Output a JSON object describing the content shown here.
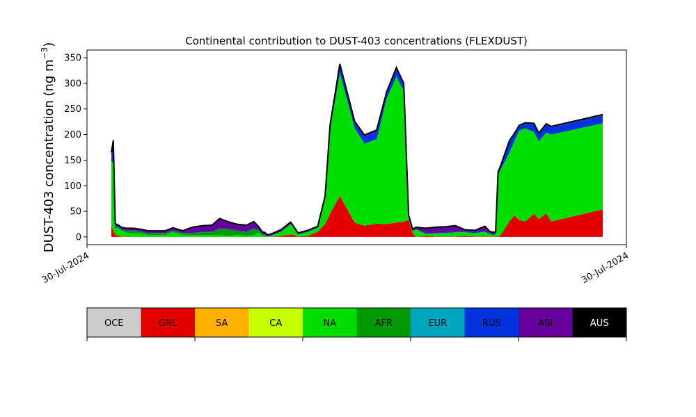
{
  "chart_data": {
    "type": "area",
    "title": "Continental contribution to DUST-403 concentrations (FLEXDUST)",
    "ylabel": "DUST-403 concentration (ng m",
    "ylabel_sup": "−3",
    "ylabel_close": ")",
    "xlabel": "",
    "x_tick_labels": [
      "30-Jul-2024",
      "30-Jul-2024"
    ],
    "ylim": [
      -15,
      365
    ],
    "yticks": [
      0,
      50,
      100,
      150,
      200,
      250,
      300,
      350
    ],
    "x": [
      0.0,
      0.004,
      0.008,
      0.011,
      0.015,
      0.02,
      0.03,
      0.045,
      0.06,
      0.075,
      0.09,
      0.11,
      0.125,
      0.145,
      0.165,
      0.185,
      0.205,
      0.22,
      0.24,
      0.255,
      0.275,
      0.29,
      0.3,
      0.307,
      0.312,
      0.318,
      0.325,
      0.345,
      0.365,
      0.38,
      0.4,
      0.42,
      0.435,
      0.445,
      0.465,
      0.495,
      0.515,
      0.54,
      0.56,
      0.58,
      0.595,
      0.605,
      0.613,
      0.62,
      0.64,
      0.66,
      0.68,
      0.7,
      0.72,
      0.74,
      0.76,
      0.77,
      0.777,
      0.782,
      0.787,
      0.792,
      0.81,
      0.82,
      0.83,
      0.842,
      0.86,
      0.87,
      0.885,
      0.895,
      1.0
    ],
    "series": [
      {
        "name": "OCE",
        "color": "#cccccc",
        "values": [
          0,
          0,
          0,
          0,
          0,
          0,
          0,
          0,
          0,
          0,
          0,
          0,
          0,
          0,
          0,
          0,
          0,
          0,
          0,
          0,
          0,
          0,
          0,
          0,
          0,
          0,
          0,
          0,
          0,
          0,
          0,
          0,
          0,
          0,
          0,
          0,
          0,
          0,
          0,
          0,
          0,
          0,
          0,
          0,
          0,
          0,
          0,
          0,
          0,
          0,
          0,
          0,
          0,
          0,
          0,
          0,
          0,
          0,
          0,
          0,
          0,
          0,
          0,
          0,
          0
        ]
      },
      {
        "name": "GNL",
        "color": "#e50000",
        "values": [
          22,
          12,
          5,
          3,
          2,
          1,
          1,
          0,
          0,
          0,
          0,
          0,
          0,
          0,
          0,
          0,
          0,
          0,
          0,
          0,
          0,
          0,
          0,
          0,
          0,
          0,
          0,
          2,
          5,
          1,
          2,
          10,
          25,
          45,
          80,
          28,
          22,
          26,
          25,
          28,
          30,
          33,
          8,
          0,
          2,
          1,
          1,
          1,
          2,
          1,
          1,
          1,
          1,
          1,
          1,
          3,
          30,
          42,
          33,
          30,
          45,
          35,
          46,
          30,
          54
        ]
      },
      {
        "name": "SA",
        "color": "#ffb000",
        "values": [
          0,
          0,
          0,
          0,
          0,
          0,
          0,
          0,
          0,
          0,
          0,
          0,
          0,
          0,
          0,
          0,
          0,
          0,
          0,
          0,
          0,
          0,
          0,
          0,
          0,
          0,
          0,
          0,
          0,
          0,
          0,
          0,
          0,
          0,
          0,
          0,
          0,
          0,
          0,
          0,
          0,
          0,
          0,
          0,
          0,
          0,
          0,
          0,
          0,
          0,
          0,
          0,
          0,
          0,
          0,
          0,
          0,
          0,
          0,
          0,
          0,
          0,
          0,
          0,
          0
        ]
      },
      {
        "name": "CA",
        "color": "#c8ff00",
        "values": [
          0,
          0,
          0,
          0,
          0,
          0,
          0,
          0,
          0,
          0,
          0,
          0,
          0,
          0,
          0,
          0,
          0,
          0,
          0,
          0,
          0,
          0,
          0,
          0,
          0,
          0,
          0,
          0,
          0,
          0,
          0,
          0,
          0,
          0,
          0,
          0,
          0,
          0,
          0,
          0,
          0,
          0,
          0,
          0,
          0,
          0,
          0,
          0,
          0,
          0,
          0,
          0,
          0,
          0,
          0,
          0,
          0,
          0,
          0,
          0,
          0,
          0,
          0,
          0,
          0
        ]
      },
      {
        "name": "NA",
        "color": "#00dd00",
        "values": [
          125,
          133,
          10,
          15,
          15,
          12,
          7,
          7,
          6,
          4,
          4,
          4,
          10,
          4,
          4,
          4,
          4,
          4,
          2,
          4,
          2,
          4,
          8,
          3,
          2,
          1,
          2,
          8,
          20,
          4,
          8,
          8,
          50,
          165,
          240,
          185,
          160,
          165,
          245,
          285,
          255,
          2,
          3,
          15,
          4,
          6,
          7,
          8,
          7,
          7,
          9,
          5,
          3,
          4,
          120,
          128,
          135,
          145,
          175,
          182,
          160,
          152,
          158,
          170,
          168
        ]
      },
      {
        "name": "AFR",
        "color": "#009900",
        "values": [
          1,
          1,
          1,
          1,
          1,
          1,
          4,
          5,
          4,
          3,
          3,
          3,
          2,
          3,
          3,
          5,
          6,
          12,
          13,
          8,
          8,
          12,
          5,
          2,
          2,
          0,
          1,
          0,
          0,
          0,
          0,
          0,
          0,
          0,
          0,
          0,
          0,
          0,
          0,
          0,
          0,
          0,
          0,
          0,
          0,
          0,
          0,
          0,
          0,
          0,
          0,
          0,
          0,
          0,
          0,
          0,
          0,
          0,
          0,
          0,
          0,
          0,
          0,
          0,
          0
        ]
      },
      {
        "name": "EUR",
        "color": "#00a6bd",
        "values": [
          0,
          0,
          0,
          0,
          0,
          0,
          0,
          0,
          0,
          0,
          0,
          0,
          0,
          0,
          0,
          0,
          0,
          0,
          0,
          0,
          0,
          0,
          0,
          0,
          0,
          0,
          0,
          0,
          0,
          0,
          0,
          0,
          0,
          0,
          0,
          0,
          0,
          0,
          0,
          0,
          0,
          0,
          0,
          0,
          0,
          0,
          0,
          0,
          0,
          0,
          0,
          0,
          0,
          0,
          0,
          0,
          0,
          0,
          0,
          0,
          0,
          0,
          0,
          0,
          0
        ]
      },
      {
        "name": "RUS",
        "color": "#0033dd",
        "values": [
          15,
          20,
          8,
          3,
          3,
          2,
          1,
          1,
          1,
          1,
          1,
          1,
          1,
          1,
          1,
          1,
          1,
          1,
          1,
          1,
          1,
          1,
          1,
          1,
          1,
          0,
          0,
          1,
          1,
          1,
          1,
          1,
          2,
          5,
          15,
          10,
          14,
          15,
          10,
          15,
          12,
          5,
          1,
          1,
          1,
          1,
          1,
          2,
          2,
          2,
          2,
          2,
          2,
          2,
          3,
          5,
          20,
          13,
          8,
          9,
          15,
          14,
          15,
          14,
          15
        ]
      },
      {
        "name": "ASI",
        "color": "#66009c",
        "values": [
          1,
          1,
          1,
          1,
          1,
          2,
          3,
          3,
          3,
          3,
          3,
          3,
          4,
          3,
          10,
          11,
          11,
          18,
          12,
          11,
          11,
          12,
          5,
          3,
          3,
          2,
          2,
          2,
          2,
          1,
          1,
          1,
          2,
          2,
          2,
          2,
          2,
          2,
          2,
          2,
          2,
          2,
          2,
          2,
          9,
          10,
          10,
          10,
          2,
          2,
          8,
          2,
          2,
          2,
          2,
          2,
          2,
          1,
          1,
          1,
          1,
          1,
          1,
          1,
          1
        ]
      },
      {
        "name": "AUS",
        "color": "#000000",
        "values": [
          1,
          22,
          2,
          1,
          1,
          1,
          1,
          1,
          1,
          1,
          1,
          1,
          1,
          1,
          1,
          1,
          1,
          1,
          1,
          1,
          1,
          1,
          1,
          1,
          1,
          1,
          1,
          1,
          1,
          1,
          1,
          1,
          1,
          1,
          1,
          1,
          1,
          1,
          1,
          1,
          1,
          1,
          1,
          1,
          1,
          1,
          1,
          1,
          1,
          1,
          1,
          1,
          1,
          1,
          1,
          1,
          1,
          1,
          1,
          1,
          1,
          1,
          1,
          1,
          1
        ]
      }
    ],
    "legend": [
      "OCE",
      "GNL",
      "SA",
      "CA",
      "NA",
      "AFR",
      "EUR",
      "RUS",
      "ASI",
      "AUS"
    ],
    "legend_placement": "bottom",
    "grid": false
  }
}
